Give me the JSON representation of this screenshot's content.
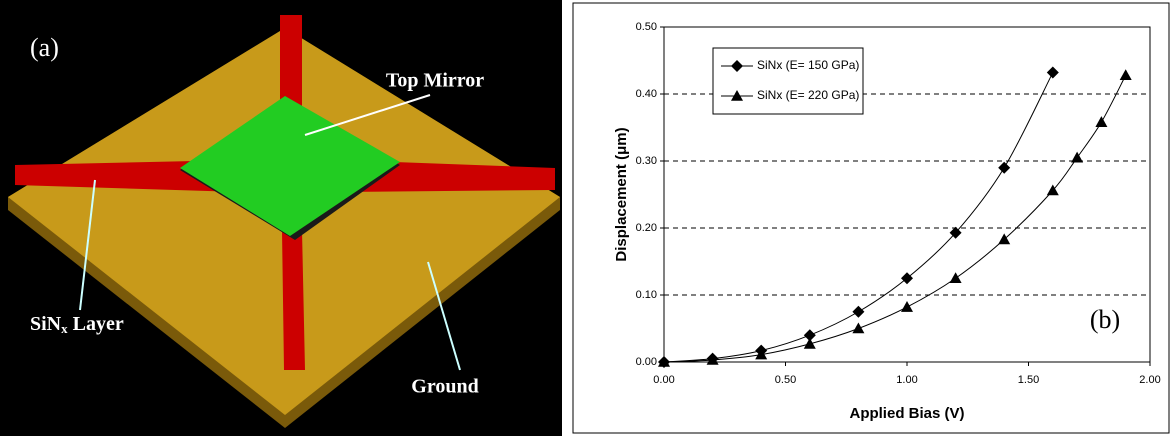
{
  "panel_a": {
    "label": "(a)",
    "top_mirror": "Top Mirror",
    "layer": {
      "main": "SiN",
      "sub": "x",
      "rest": " Layer"
    },
    "ground": "Ground"
  },
  "chart_data": {
    "type": "line",
    "x_label": "Applied Bias (V)",
    "y_label": "Displacement (μm)",
    "annotation": "(b)",
    "xlim": [
      0,
      2
    ],
    "ylim": [
      0,
      0.5
    ],
    "xticks": [
      {
        "value": 0,
        "label": "0.00"
      },
      {
        "value": 0.5,
        "label": "0.50"
      },
      {
        "value": 1,
        "label": "1.00"
      },
      {
        "value": 1.5,
        "label": "1.50"
      },
      {
        "value": 2,
        "label": "2.00"
      }
    ],
    "yticks": [
      {
        "value": 0,
        "label": "0.00"
      },
      {
        "value": 0.1,
        "label": "0.10"
      },
      {
        "value": 0.2,
        "label": "0.20"
      },
      {
        "value": 0.3,
        "label": "0.30"
      },
      {
        "value": 0.4,
        "label": "0.40"
      },
      {
        "value": 0.5,
        "label": "0.50"
      }
    ],
    "grid": true,
    "legend": "top-left",
    "series": [
      {
        "name": "SiNx (E= 150 GPa)",
        "color": "#000000",
        "marker": "diamond",
        "x": [
          0,
          0.2,
          0.4,
          0.6,
          0.8,
          1.0,
          1.2,
          1.4,
          1.6
        ],
        "values": [
          0,
          0.005,
          0.017,
          0.04,
          0.075,
          0.125,
          0.193,
          0.29,
          0.432
        ]
      },
      {
        "name": "SiNx (E= 220 GPa)",
        "color": "#000000",
        "marker": "triangle",
        "x": [
          0,
          0.2,
          0.4,
          0.6,
          0.8,
          1.0,
          1.2,
          1.4,
          1.6,
          1.7,
          1.8,
          1.9
        ],
        "values": [
          0,
          0.003,
          0.011,
          0.027,
          0.05,
          0.082,
          0.125,
          0.183,
          0.256,
          0.305,
          0.358,
          0.428
        ]
      }
    ]
  }
}
